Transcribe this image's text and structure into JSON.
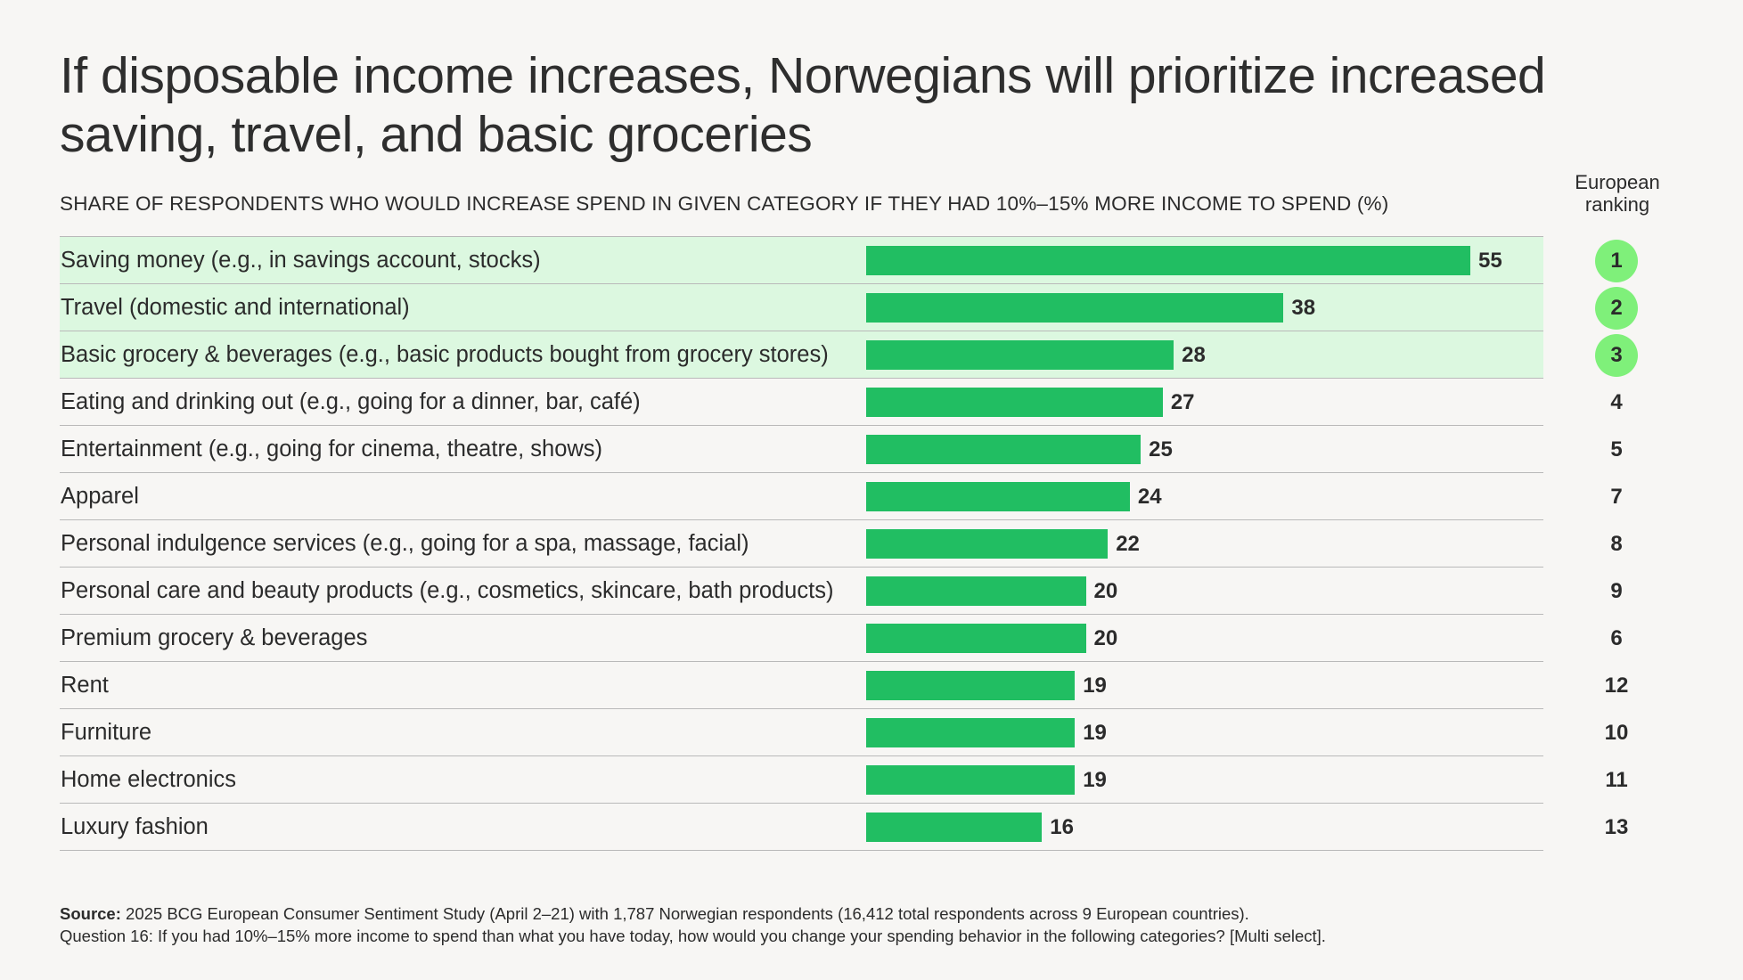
{
  "title": "If disposable income increases, Norwegians will prioritize increased saving, travel, and basic groceries",
  "subtitle": "SHARE OF RESPONDENTS WHO WOULD INCREASE SPEND IN GIVEN CATEGORY IF THEY HAD 10%–15% MORE INCOME TO SPEND (%)",
  "rank_header": "European ranking",
  "source_label": "Source:",
  "source_text": " 2025 BCG European Consumer Sentiment Study (April 2–21) with 1,787 Norwegian respondents (16,412 total respondents across 9 European countries).",
  "question_text": "Question 16: If you had 10%–15% more income to spend than what you have today, how would you change your spending behavior in the following categories? [Multi select].",
  "colors": {
    "bar": "#21be62",
    "highlight_row": "#dcf8e0",
    "top_rank_circle": "#7ff07a"
  },
  "chart_data": {
    "type": "bar",
    "orientation": "horizontal",
    "xlim": [
      0,
      55
    ],
    "categories": [
      "Saving money (e.g., in savings account, stocks)",
      "Travel (domestic and international)",
      "Basic grocery & beverages (e.g., basic products bought from grocery stores)",
      "Eating and drinking out (e.g., going for a dinner, bar, café)",
      "Entertainment (e.g., going for cinema, theatre, shows)",
      "Apparel",
      "Personal indulgence services (e.g., going for a spa, massage, facial)",
      "Personal care and beauty products (e.g., cosmetics, skincare, bath products)",
      "Premium grocery & beverages",
      "Rent",
      "Furniture",
      "Home electronics",
      "Luxury fashion"
    ],
    "values": [
      55,
      38,
      28,
      27,
      25,
      24,
      22,
      20,
      20,
      19,
      19,
      19,
      16
    ],
    "european_ranking": [
      1,
      2,
      3,
      4,
      5,
      7,
      8,
      9,
      6,
      12,
      10,
      11,
      13
    ],
    "highlighted_top": 3
  }
}
